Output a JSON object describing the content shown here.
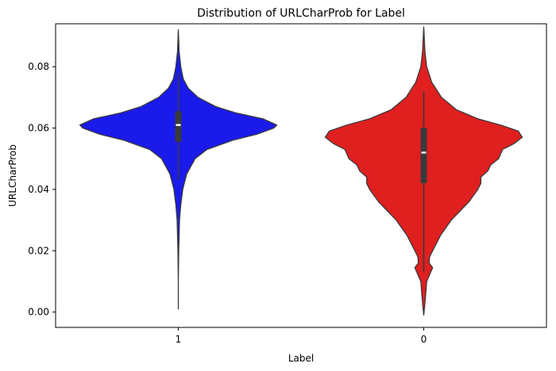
{
  "chart_data": {
    "type": "violin",
    "title": "Distribution of URLCharProb for Label",
    "xlabel": "Label",
    "ylabel": "URLCharProb",
    "categories": [
      "1",
      "0"
    ],
    "ylim": [
      -0.005,
      0.094
    ],
    "yticks": [
      0.0,
      0.02,
      0.04,
      0.06,
      0.08
    ],
    "ytick_labels": [
      "0.00",
      "0.02",
      "0.04",
      "0.06",
      "0.08"
    ],
    "grid": false,
    "violins": [
      {
        "category": "1",
        "color": "#1a1aeb",
        "min": 0.001,
        "max": 0.092,
        "q1": 0.0555,
        "median": 0.061,
        "q3": 0.0655,
        "whisker_low": 0.043,
        "whisker_high": 0.078,
        "profile": [
          [
            0.001,
            0.0
          ],
          [
            0.01,
            0.0
          ],
          [
            0.02,
            0.004
          ],
          [
            0.03,
            0.012
          ],
          [
            0.035,
            0.025
          ],
          [
            0.04,
            0.045
          ],
          [
            0.045,
            0.085
          ],
          [
            0.05,
            0.17
          ],
          [
            0.053,
            0.29
          ],
          [
            0.056,
            0.55
          ],
          [
            0.058,
            0.8
          ],
          [
            0.06,
            0.97
          ],
          [
            0.061,
            1.0
          ],
          [
            0.063,
            0.86
          ],
          [
            0.065,
            0.58
          ],
          [
            0.067,
            0.38
          ],
          [
            0.07,
            0.2
          ],
          [
            0.073,
            0.1
          ],
          [
            0.076,
            0.05
          ],
          [
            0.08,
            0.025
          ],
          [
            0.085,
            0.008
          ],
          [
            0.092,
            0.0
          ]
        ]
      },
      {
        "category": "0",
        "color": "#e01f1f",
        "min": -0.001,
        "max": 0.093,
        "q1": 0.042,
        "median": 0.052,
        "q3": 0.06,
        "whisker_low": 0.013,
        "whisker_high": 0.072,
        "profile": [
          [
            -0.001,
            0.0
          ],
          [
            0.002,
            0.01
          ],
          [
            0.006,
            0.02
          ],
          [
            0.01,
            0.03
          ],
          [
            0.013,
            0.07
          ],
          [
            0.0145,
            0.09
          ],
          [
            0.016,
            0.055
          ],
          [
            0.018,
            0.06
          ],
          [
            0.02,
            0.09
          ],
          [
            0.025,
            0.17
          ],
          [
            0.03,
            0.28
          ],
          [
            0.033,
            0.37
          ],
          [
            0.036,
            0.46
          ],
          [
            0.04,
            0.55
          ],
          [
            0.042,
            0.58
          ],
          [
            0.044,
            0.58
          ],
          [
            0.046,
            0.65
          ],
          [
            0.048,
            0.68
          ],
          [
            0.05,
            0.76
          ],
          [
            0.053,
            0.8
          ],
          [
            0.055,
            0.92
          ],
          [
            0.057,
            1.0
          ],
          [
            0.059,
            0.96
          ],
          [
            0.061,
            0.78
          ],
          [
            0.063,
            0.55
          ],
          [
            0.066,
            0.33
          ],
          [
            0.07,
            0.18
          ],
          [
            0.075,
            0.08
          ],
          [
            0.08,
            0.03
          ],
          [
            0.085,
            0.012
          ],
          [
            0.093,
            0.0
          ]
        ]
      }
    ]
  }
}
